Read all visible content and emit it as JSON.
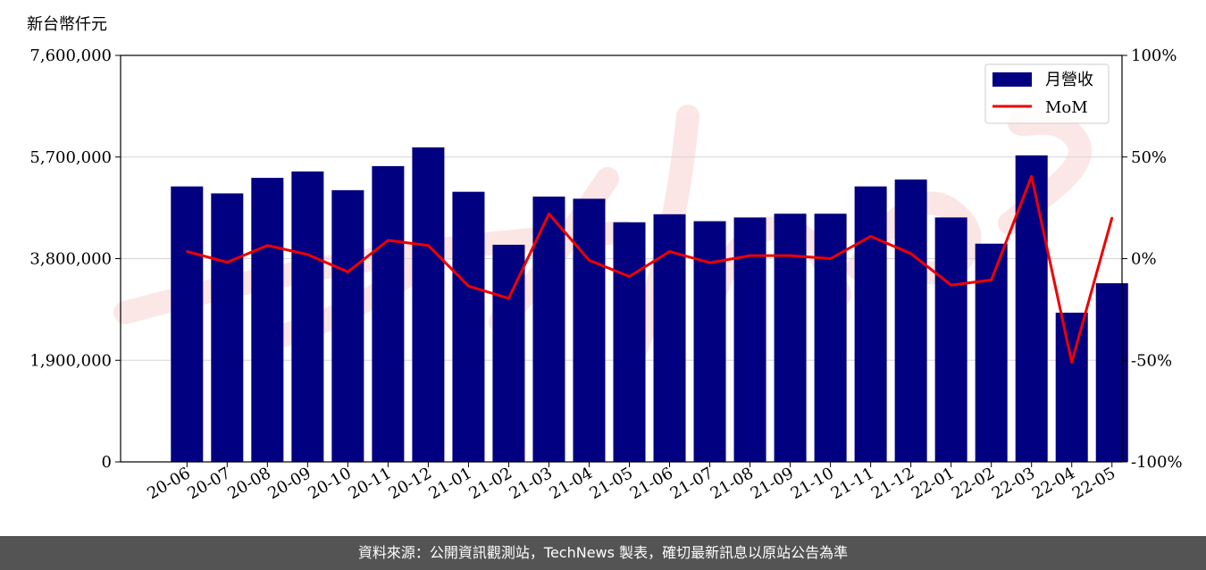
{
  "chart_data": {
    "type": "bar",
    "unit_label": "新台幣仟元",
    "categories": [
      "20-06",
      "20-07",
      "20-08",
      "20-09",
      "20-10",
      "20-11",
      "20-12",
      "21-01",
      "21-02",
      "21-03",
      "21-04",
      "21-05",
      "21-06",
      "21-07",
      "21-08",
      "21-09",
      "21-10",
      "21-11",
      "21-12",
      "22-01",
      "22-02",
      "22-03",
      "22-04",
      "22-05"
    ],
    "series": [
      {
        "name": "月營收",
        "type": "bar",
        "axis": "left",
        "color": "#000080",
        "values": [
          5150000,
          5020000,
          5310000,
          5430000,
          5080000,
          5530000,
          5880000,
          5050000,
          4060000,
          4960000,
          4920000,
          4480000,
          4630000,
          4500000,
          4570000,
          4640000,
          4640000,
          5150000,
          5280000,
          4570000,
          4080000,
          5730000,
          2790000,
          3340000
        ]
      },
      {
        "name": "MoM",
        "type": "line",
        "axis": "right",
        "color": "#ee0000",
        "values": [
          3.5,
          -1.8,
          6.5,
          2.0,
          -6.5,
          9.0,
          6.5,
          -13.5,
          -19.5,
          22.0,
          -0.8,
          -8.8,
          3.5,
          -2.0,
          1.5,
          1.5,
          0.0,
          11.0,
          2.5,
          -13.0,
          -10.5,
          40.5,
          -51.0,
          20.0
        ]
      }
    ],
    "yAxisLeft": {
      "min": 0,
      "max": 7600000,
      "ticks": [
        "0",
        "1,900,000",
        "3,800,000",
        "5,700,000",
        "7,600,000"
      ]
    },
    "yAxisRight": {
      "min": -100,
      "max": 100,
      "ticks": [
        "-100%",
        "-50%",
        "0%",
        "50%",
        "100%"
      ]
    },
    "grid": true,
    "legend_position": "top-right"
  },
  "footer": {
    "text": "資料來源：公開資訊觀測站，TechNews 製表，確切最新訊息以原站公告為準"
  }
}
